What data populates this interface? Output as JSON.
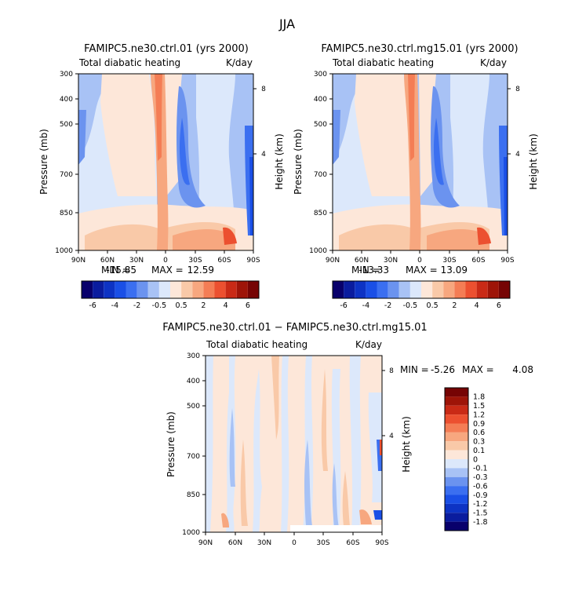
{
  "figure": {
    "season": "JJA"
  },
  "chart_data": [
    {
      "type": "heatmap",
      "title": "FAMIPC5.ne30.ctrl.01 (yrs 2000)",
      "subtitle_left": "Total diabatic heating",
      "subtitle_right": "K/day",
      "xlabel": "",
      "ylabel": "Pressure (mb)",
      "ylabel_right": "Height (km)",
      "x_ticks": [
        "90N",
        "60N",
        "30N",
        "0",
        "30S",
        "60S",
        "90S"
      ],
      "y_ticks": [
        "300",
        "400",
        "500",
        "700",
        "850",
        "1000"
      ],
      "y_ticks_right": [
        "8",
        "4"
      ],
      "stats": {
        "min_label": "MIN =",
        "min_value": "-15.85",
        "max_label": "MAX =",
        "max_value": "12.59"
      },
      "colorbar_orientation": "horizontal",
      "colorbar_labels": [
        "-6",
        "-4",
        "-2",
        "-0.5",
        "0.5",
        "2",
        "4",
        "6"
      ],
      "colorbar_levels": [
        -6,
        -5,
        -4,
        -3,
        -2,
        -1,
        -0.5,
        0,
        0.5,
        1,
        2,
        3,
        4,
        5,
        6
      ]
    },
    {
      "type": "heatmap",
      "title": "FAMIPC5.ne30.ctrl.mg15.01 (yrs 2000)",
      "subtitle_left": "Total diabatic heating",
      "subtitle_right": "K/day",
      "xlabel": "",
      "ylabel": "Pressure (mb)",
      "ylabel_right": "Height (km)",
      "x_ticks": [
        "90N",
        "60N",
        "30N",
        "0",
        "30S",
        "60S",
        "90S"
      ],
      "y_ticks": [
        "300",
        "400",
        "500",
        "700",
        "850",
        "1000"
      ],
      "y_ticks_right": [
        "8",
        "4"
      ],
      "stats": {
        "min_label": "MIN =",
        "min_value": "-13.33",
        "max_label": "MAX =",
        "max_value": "13.09"
      },
      "colorbar_orientation": "horizontal",
      "colorbar_labels": [
        "-6",
        "-4",
        "-2",
        "-0.5",
        "0.5",
        "2",
        "4",
        "6"
      ],
      "colorbar_levels": [
        -6,
        -5,
        -4,
        -3,
        -2,
        -1,
        -0.5,
        0,
        0.5,
        1,
        2,
        3,
        4,
        5,
        6
      ]
    },
    {
      "type": "heatmap",
      "title": "FAMIPC5.ne30.ctrl.01 − FAMIPC5.ne30.ctrl.mg15.01",
      "subtitle_left": "Total diabatic heating",
      "subtitle_right": "K/day",
      "xlabel": "",
      "ylabel": "Pressure (mb)",
      "ylabel_right": "Height (km)",
      "x_ticks": [
        "90N",
        "60N",
        "30N",
        "0",
        "30S",
        "60S",
        "90S"
      ],
      "y_ticks": [
        "300",
        "400",
        "500",
        "700",
        "850",
        "1000"
      ],
      "y_ticks_right": [
        "8",
        "4"
      ],
      "stats": {
        "min_label": "MIN =",
        "min_value": "-5.26",
        "max_label": "MAX =",
        "max_value": "4.08"
      },
      "colorbar_orientation": "vertical",
      "colorbar_labels": [
        "1.8",
        "1.5",
        "1.2",
        "0.9",
        "0.6",
        "0.3",
        "0.1",
        "0",
        "-0.1",
        "-0.3",
        "-0.6",
        "-0.9",
        "-1.2",
        "-1.5",
        "-1.8"
      ],
      "colorbar_levels": [
        1.8,
        1.5,
        1.2,
        0.9,
        0.6,
        0.3,
        0.1,
        0,
        -0.1,
        -0.3,
        -0.6,
        -0.9,
        -1.2,
        -1.5,
        -1.8
      ]
    }
  ],
  "palette": [
    "#08006b",
    "#0a1c9e",
    "#0d33c4",
    "#1a4fe6",
    "#3b6ff0",
    "#6b93ef",
    "#a8c2f5",
    "#dce8fb",
    "#fde7d9",
    "#f9c9a8",
    "#f7a77f",
    "#f47d55",
    "#ec5030",
    "#c92a16",
    "#9e1408",
    "#760404"
  ]
}
